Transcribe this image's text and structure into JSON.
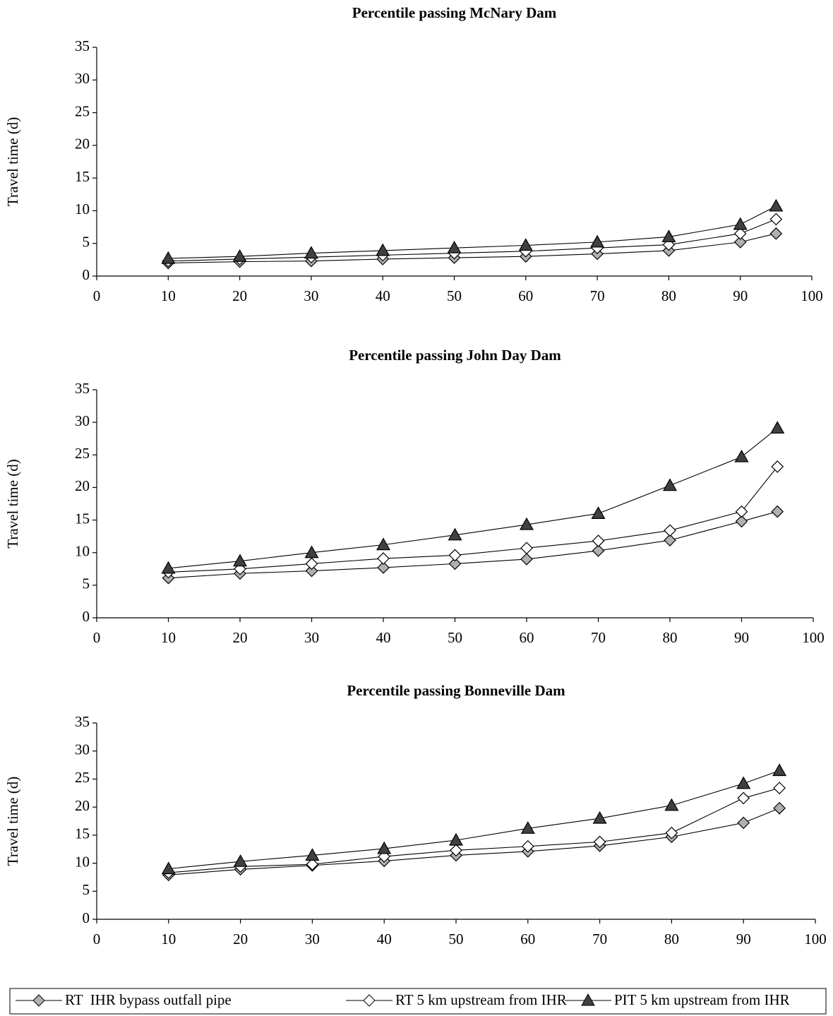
{
  "chart_data": [
    {
      "type": "line",
      "title": "Percentile passing McNary Dam",
      "ylabel": "Travel time (d)",
      "x": [
        10,
        20,
        30,
        40,
        50,
        60,
        70,
        80,
        90,
        95
      ],
      "xlim": [
        0,
        100
      ],
      "xticks": [
        0,
        10,
        20,
        30,
        40,
        50,
        60,
        70,
        80,
        90,
        100
      ],
      "ylim": [
        0,
        35
      ],
      "yticks": [
        0,
        5,
        10,
        15,
        20,
        25,
        30,
        35
      ],
      "series": [
        {
          "name": "RT  IHR bypass outfall pipe",
          "marker": "diamond",
          "color": "#b0b0b0",
          "values": [
            2.0,
            2.2,
            2.3,
            2.6,
            2.8,
            3.0,
            3.4,
            3.9,
            5.2,
            6.5
          ]
        },
        {
          "name": "RT 5 km upstream from IHR",
          "marker": "diamond",
          "color": "#ffffff",
          "values": [
            2.3,
            2.6,
            2.9,
            3.2,
            3.5,
            3.8,
            4.3,
            4.8,
            6.5,
            8.7
          ]
        },
        {
          "name": "PIT 5 km upstream from IHR",
          "marker": "triangle",
          "color": "#404040",
          "values": [
            2.7,
            3.0,
            3.5,
            3.9,
            4.3,
            4.7,
            5.2,
            6.0,
            7.9,
            10.7
          ]
        }
      ]
    },
    {
      "type": "line",
      "title": "Percentile passing John Day Dam",
      "ylabel": "Travel time (d)",
      "x": [
        10,
        20,
        30,
        40,
        50,
        60,
        70,
        80,
        90,
        95
      ],
      "xlim": [
        0,
        100
      ],
      "xticks": [
        0,
        10,
        20,
        30,
        40,
        50,
        60,
        70,
        80,
        90,
        100
      ],
      "ylim": [
        0,
        35
      ],
      "yticks": [
        0,
        5,
        10,
        15,
        20,
        25,
        30,
        35
      ],
      "series": [
        {
          "values": [
            6.1,
            6.8,
            7.2,
            7.7,
            8.3,
            9.0,
            10.3,
            11.9,
            14.8,
            16.3
          ]
        },
        {
          "values": [
            7.0,
            7.5,
            8.3,
            9.1,
            9.6,
            10.7,
            11.8,
            13.4,
            16.3,
            23.2
          ]
        },
        {
          "values": [
            7.6,
            8.7,
            10.0,
            11.2,
            12.7,
            14.3,
            16.0,
            20.3,
            24.7,
            29.1
          ]
        }
      ]
    },
    {
      "type": "line",
      "title": "Percentile passing Bonneville Dam",
      "ylabel": "Travel time (d)",
      "x": [
        10,
        20,
        30,
        40,
        50,
        60,
        70,
        80,
        90,
        95
      ],
      "xlim": [
        0,
        100
      ],
      "xticks": [
        0,
        10,
        20,
        30,
        40,
        50,
        60,
        70,
        80,
        90,
        100
      ],
      "ylim": [
        0,
        35
      ],
      "yticks": [
        0,
        5,
        10,
        15,
        20,
        25,
        30,
        35
      ],
      "series": [
        {
          "values": [
            7.9,
            8.9,
            9.6,
            10.4,
            11.4,
            12.1,
            13.1,
            14.7,
            17.2,
            19.8
          ]
        },
        {
          "values": [
            8.3,
            9.4,
            9.8,
            11.2,
            12.3,
            13.0,
            13.8,
            15.4,
            21.6,
            23.4
          ]
        },
        {
          "values": [
            9.0,
            10.3,
            11.4,
            12.6,
            14.1,
            16.2,
            18.0,
            20.3,
            24.2,
            26.5
          ]
        }
      ]
    }
  ]
}
